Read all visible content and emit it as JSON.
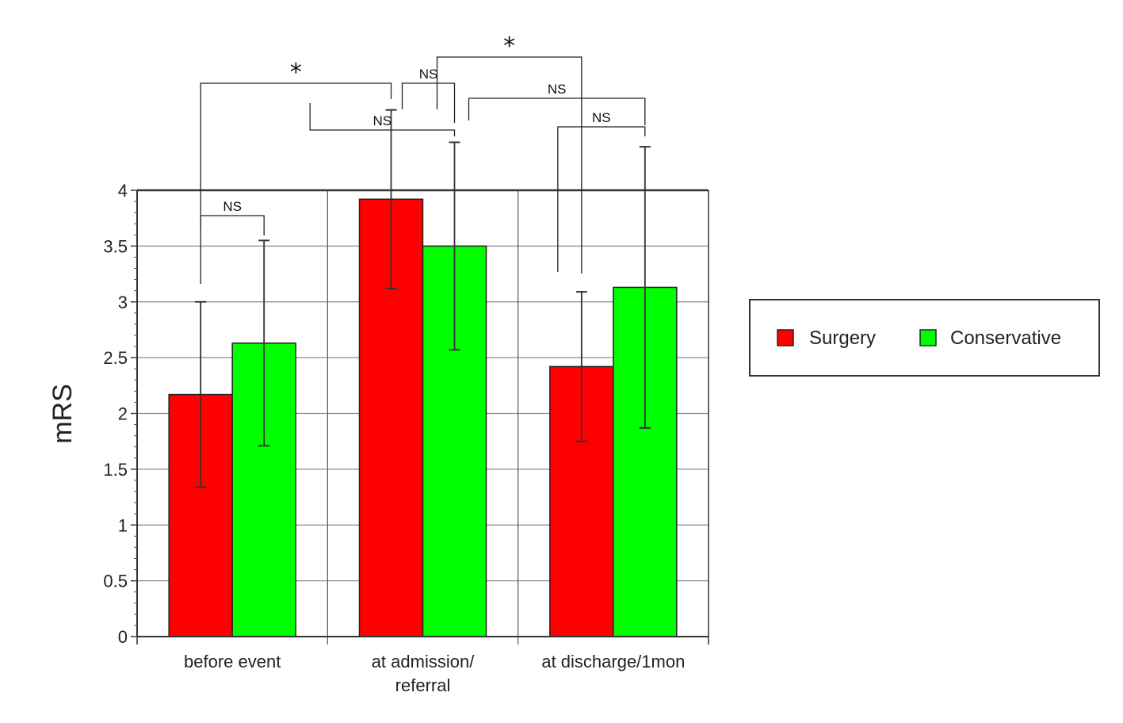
{
  "chart_data": {
    "type": "bar",
    "title": "",
    "xlabel": "",
    "ylabel": "mRS",
    "ylim": [
      0,
      4
    ],
    "yticks": [
      "0",
      "0.5",
      "1",
      "1.5",
      "2",
      "2.5",
      "3",
      "3.5",
      "4"
    ],
    "grid": true,
    "legend_position": "right",
    "categories": [
      [
        "before event"
      ],
      [
        "at admission/",
        "referral"
      ],
      [
        "at discharge/1mon"
      ]
    ],
    "series": [
      {
        "name": "Surgery",
        "color": "#ff0000",
        "values": [
          2.17,
          3.92,
          2.42
        ],
        "error": [
          0.83,
          0.8,
          0.67
        ]
      },
      {
        "name": "Conservative",
        "color": "#00ff00",
        "values": [
          2.63,
          3.5,
          3.13
        ],
        "error": [
          0.92,
          0.93,
          1.26
        ]
      }
    ],
    "annotations": [
      {
        "label": "NS",
        "from": [
          0,
          0
        ],
        "to": [
          0,
          1
        ]
      },
      {
        "label": "NS",
        "from": [
          0,
          1
        ],
        "to": [
          1,
          1
        ]
      },
      {
        "label": "*",
        "from": [
          0,
          0
        ],
        "to": [
          1,
          0
        ]
      },
      {
        "label": "NS",
        "from": [
          1,
          0
        ],
        "to": [
          1,
          1
        ]
      },
      {
        "label": "*",
        "from": [
          1,
          0
        ],
        "to": [
          2,
          0
        ]
      },
      {
        "label": "NS",
        "from": [
          1,
          1
        ],
        "to": [
          2,
          1
        ]
      },
      {
        "label": "NS",
        "from": [
          2,
          0
        ],
        "to": [
          2,
          1
        ]
      }
    ]
  }
}
